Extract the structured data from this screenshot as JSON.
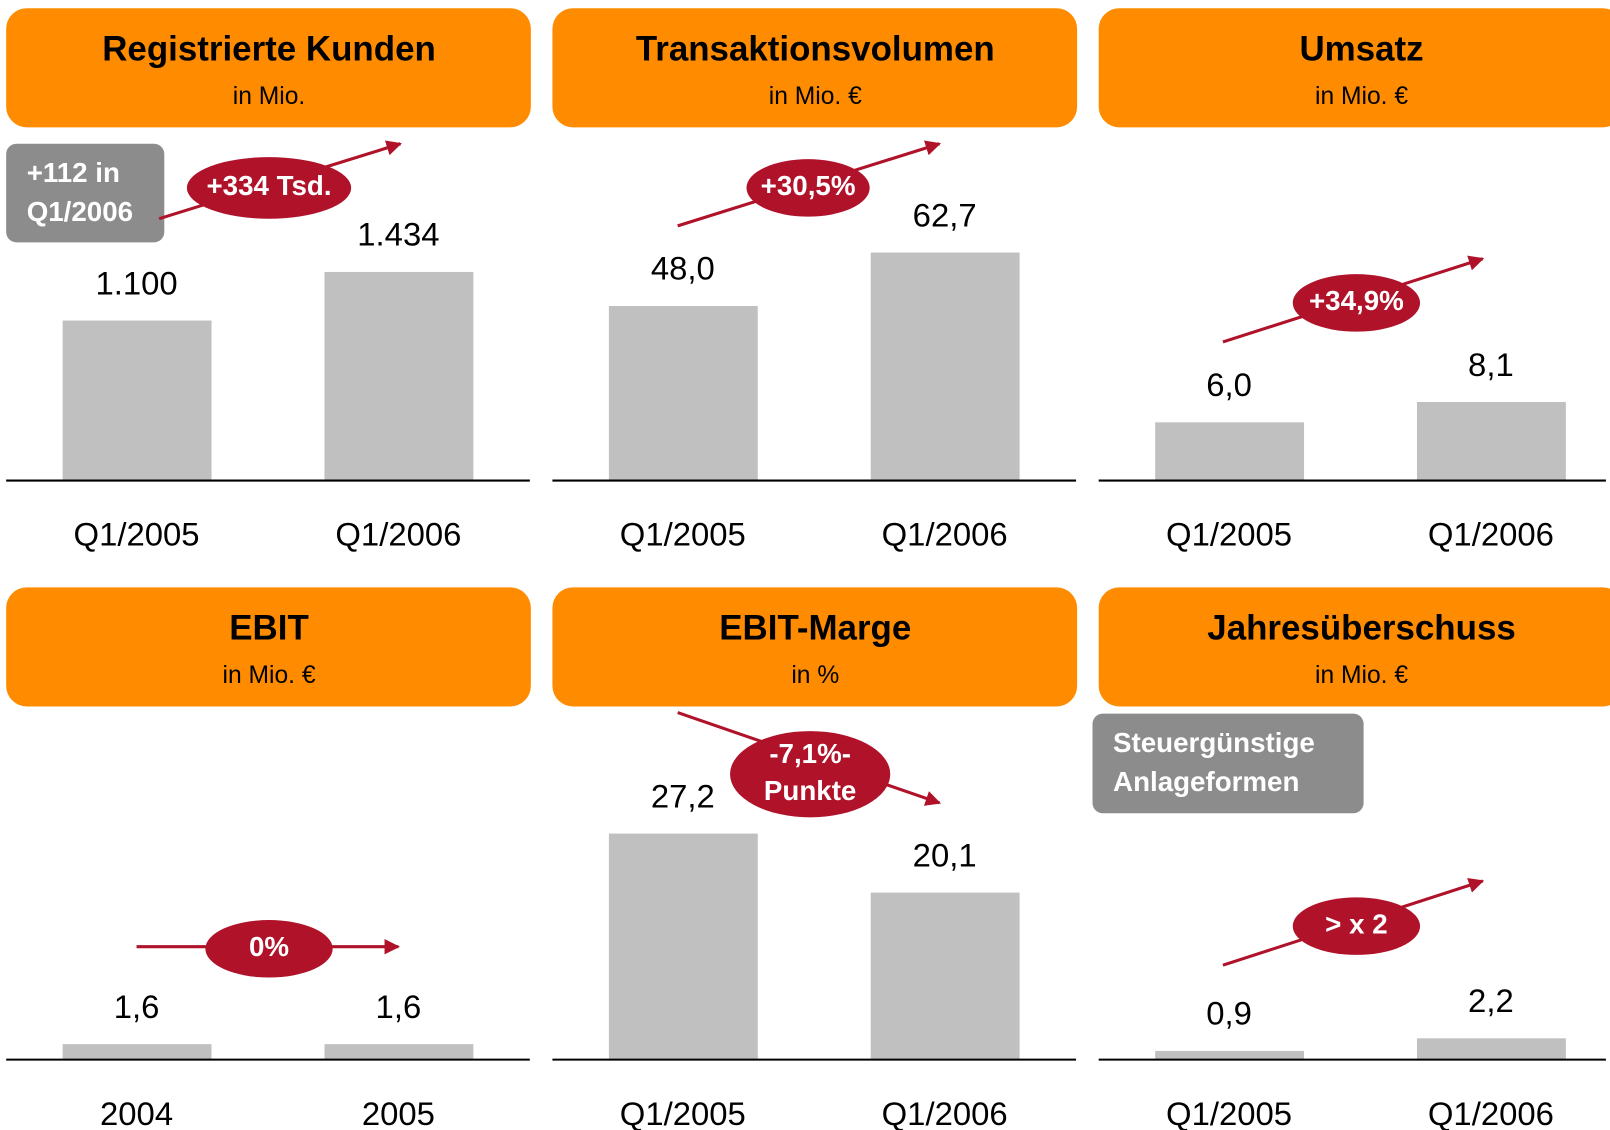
{
  "chart_data": [
    {
      "type": "bar",
      "title": "Registrierte Kunden",
      "subtitle": "in Mio.",
      "categories": [
        "Q1/2005",
        "Q1/2006"
      ],
      "values": [
        1100,
        1434
      ],
      "value_labels": [
        "1.100",
        "1.434"
      ],
      "ylim": [
        0,
        2400
      ],
      "color": "#c0c0c0",
      "badge": [
        "+334 Tsd."
      ],
      "note": [
        "+112 in",
        "Q1/2006"
      ]
    },
    {
      "type": "bar",
      "title": "Transaktionsvolumen",
      "subtitle": "in Mio. €",
      "categories": [
        "Q1/2005",
        "Q1/2006"
      ],
      "values": [
        48.0,
        62.7
      ],
      "value_labels": [
        "48,0",
        "62,7"
      ],
      "ylim": [
        0,
        96
      ],
      "color": "#c0c0c0",
      "badge": [
        "+30,5%"
      ]
    },
    {
      "type": "bar",
      "title": "Umsatz",
      "subtitle": "in Mio. €",
      "categories": [
        "Q1/2005",
        "Q1/2006"
      ],
      "values": [
        6.0,
        8.1
      ],
      "value_labels": [
        "6,0",
        "8,1"
      ],
      "ylim": [
        0,
        36
      ],
      "color": "#c0c0c0",
      "badge": [
        "+34,9%"
      ]
    },
    {
      "type": "bar",
      "title": "EBIT",
      "subtitle": "in Mio. €",
      "categories": [
        "2004",
        "2005"
      ],
      "values": [
        1.6,
        1.6
      ],
      "value_labels": [
        "1,6",
        "1,6"
      ],
      "ylim": [
        0,
        36
      ],
      "color": "#c0c0c0",
      "badge": [
        "0%"
      ]
    },
    {
      "type": "bar",
      "title": "EBIT-Marge",
      "subtitle": "in %",
      "categories": [
        "Q1/2005",
        "Q1/2006"
      ],
      "values": [
        27.2,
        20.1
      ],
      "value_labels": [
        "27,2",
        "20,1"
      ],
      "ylim": [
        0,
        42
      ],
      "color": "#c0c0c0",
      "badge": [
        "-7,1%-",
        "Punkte"
      ]
    },
    {
      "type": "bar",
      "title": "Jahresüberschuss",
      "subtitle": "in Mio. €",
      "categories": [
        "Q1/2005",
        "Q1/2006"
      ],
      "values": [
        0.9,
        2.2
      ],
      "value_labels": [
        "0,9",
        "2,2"
      ],
      "ylim": [
        0,
        36
      ],
      "color": "#c0c0c0",
      "badge": [
        "> x 2"
      ],
      "note": [
        "Steuergünstige",
        "Anlageformen"
      ]
    }
  ]
}
